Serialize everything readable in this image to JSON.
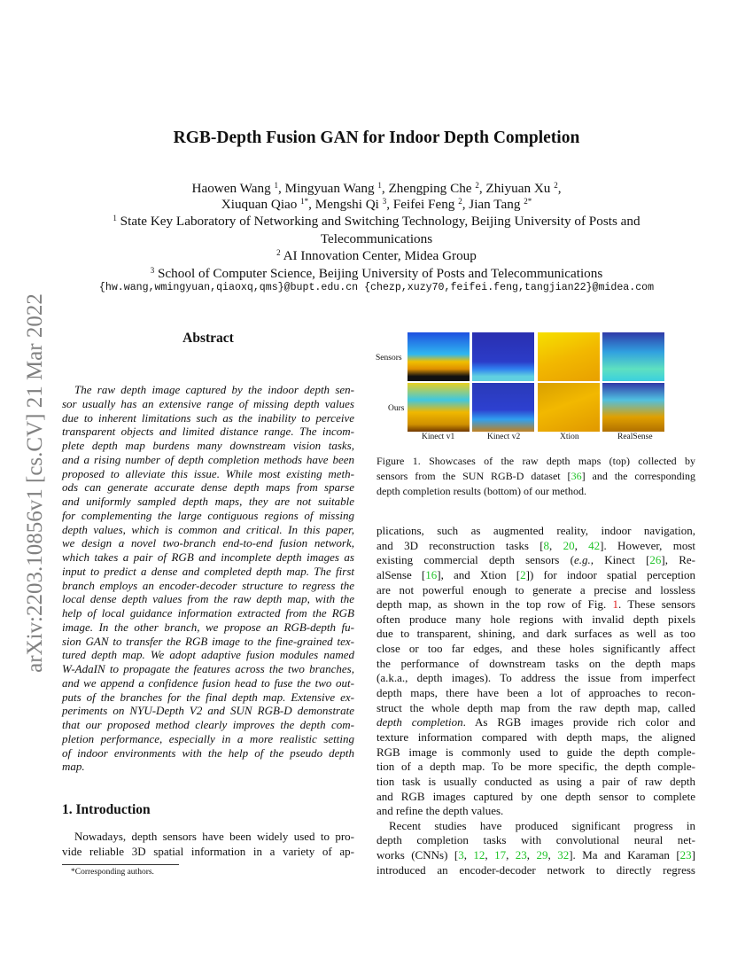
{
  "sidebar_stamp": "arXiv:2203.10856v1  [cs.CV]  21 Mar 2022",
  "title": "RGB-Depth Fusion GAN for Indoor Depth Completion",
  "authors": [
    [
      {
        "n": "Haowen Wang",
        "s": "1"
      },
      {
        "n": "Mingyuan Wang",
        "s": "1"
      },
      {
        "n": "Zhengping Che",
        "s": "2"
      },
      {
        "n": "Zhiyuan Xu",
        "s": "2"
      }
    ],
    [
      {
        "n": "Xiuquan Qiao",
        "s": "1*"
      },
      {
        "n": "Mengshi Qi",
        "s": "3"
      },
      {
        "n": "Feifei Feng",
        "s": "2"
      },
      {
        "n": "Jian Tang",
        "s": "2*"
      }
    ]
  ],
  "affiliations": [
    {
      "s": "1",
      "lines": [
        "State Key Laboratory of Networking and Switching Technology, Beijing University of Posts and",
        "Telecommunications"
      ]
    },
    {
      "s": "2",
      "lines": [
        "AI Innovation Center, Midea Group"
      ]
    },
    {
      "s": "3",
      "lines": [
        "School of Computer Science, Beijing University of Posts and Telecommunications"
      ]
    }
  ],
  "emails": "{hw.wang,wmingyuan,qiaoxq,qms}@bupt.edu.cn {chezp,xuzy70,feifei.feng,tangjian22}@midea.com",
  "abstract": {
    "heading": "Abstract",
    "lines": [
      "The raw depth image captured by the indoor depth sen-",
      "sor usually has an extensive range of missing depth values",
      "due to inherent limitations such as the inability to perceive",
      "transparent objects and limited distance range. The incom-",
      "plete depth map burdens many downstream vision tasks,",
      "and a rising number of depth completion methods have been",
      "proposed to alleviate this issue. While most existing meth-",
      "ods can generate accurate dense depth maps from sparse",
      "and uniformly sampled depth maps, they are not suitable",
      "for complementing the large contiguous regions of missing",
      "depth values, which is common and critical. In this paper,",
      "we design a novel two-branch end-to-end fusion network,",
      "which takes a pair of RGB and incomplete depth images as",
      "input to predict a dense and completed depth map. The first",
      "branch employs an encoder-decoder structure to regress the",
      "local dense depth values from the raw depth map, with the",
      "help of local guidance information extracted from the RGB",
      "image. In the other branch, we propose an RGB-depth fu-",
      "sion GAN to transfer the RGB image to the fine-grained tex-",
      "tured depth map. We adopt adaptive fusion modules named",
      "W-AdaIN to propagate the features across the two branches,",
      "and we append a confidence fusion head to fuse the two out-",
      "puts of the branches for the final depth map. Extensive ex-",
      "periments on NYU-Depth V2 and SUN RGB-D demonstrate",
      "that our proposed method clearly improves the depth com-",
      "pletion performance, especially in a more realistic setting",
      "of indoor environments with the help of the pseudo depth",
      "map."
    ]
  },
  "intro": {
    "heading": "1. Introduction",
    "lines": [
      "Nowadays, depth sensors have been widely used to pro-",
      "vide reliable 3D spatial information in a variety of ap-"
    ]
  },
  "footnote": "*Corresponding authors.",
  "figure": {
    "row_labels": [
      "Sensors",
      "Ours"
    ],
    "col_labels": [
      "Kinect v1",
      "Kinect v2",
      "Xtion",
      "RealSense"
    ],
    "caption_lines": [
      "Figure 1.  Showcases of the raw depth maps (top) collected by",
      "sensors from the SUN RGB-D dataset [36] and the corresponding",
      "depth completion results (bottom) of our method."
    ]
  },
  "right_column": {
    "lines": [
      "plications, such as augmented reality, indoor navigation,",
      "and 3D reconstruction tasks [8, 20, 42].  However, most",
      "existing commercial depth sensors (e.g., Kinect [26], Re-",
      "alSense [16], and Xtion [2]) for indoor spatial perception",
      "are not powerful enough to generate a precise and lossless",
      "depth map, as shown in the top row of Fig. 1. These sensors",
      "often produce many hole regions with invalid depth pixels",
      "due to transparent, shining, and dark surfaces as well as too",
      "close or too far edges, and these holes significantly affect",
      "the performance of downstream tasks on the depth maps",
      "(a.k.a., depth images). To address the issue from imperfect",
      "depth maps, there have been a lot of approaches to recon-",
      "struct the whole depth map from the raw depth map, called",
      "depth completion.  As RGB images provide rich color and",
      "texture information compared with depth maps, the aligned",
      "RGB image is commonly used to guide the depth comple-",
      "tion of a depth map. To be more specific, the depth comple-",
      "tion task is usually conducted as using a pair of raw depth",
      "and RGB images captured by one depth sensor to complete",
      "and refine the depth values.",
      "Recent studies have produced significant progress in",
      "depth completion tasks with convolutional neural net-",
      "works (CNNs) [3, 12, 17, 23, 29, 32]. Ma and Karaman [23]",
      "introduced an encoder-decoder network to directly regress"
    ]
  },
  "colors": {
    "citation": "#22c32a",
    "figure_ref": "#e02020",
    "stamp": "#808080"
  }
}
